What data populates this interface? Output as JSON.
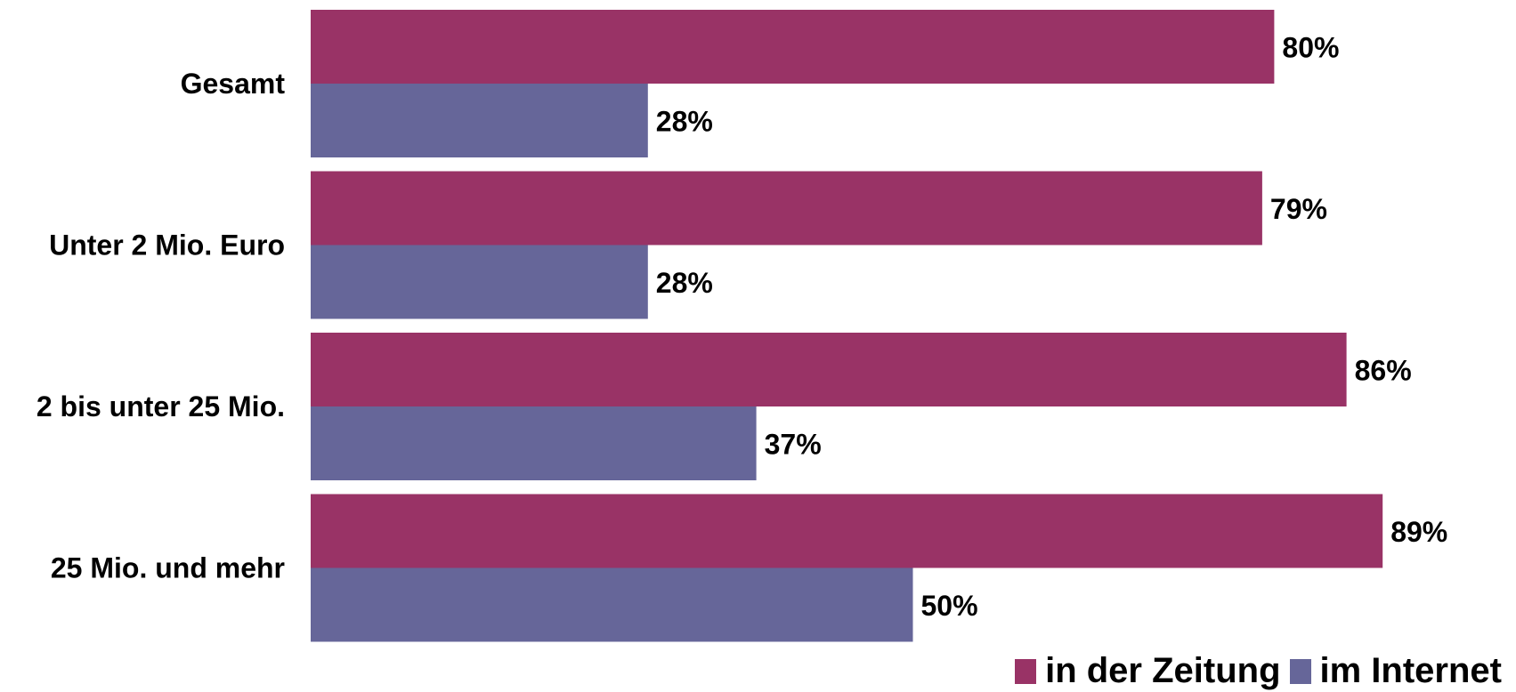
{
  "chart_data": {
    "type": "bar",
    "orientation": "horizontal",
    "categories": [
      "Gesamt",
      "Unter 2 Mio. Euro",
      "2 bis unter 25 Mio.",
      "25 Mio. und mehr"
    ],
    "series": [
      {
        "name": "in der Zeitung",
        "values": [
          80,
          79,
          86,
          89
        ],
        "labels": [
          "80%",
          "79%",
          "86%",
          "89%"
        ],
        "color": "#993366"
      },
      {
        "name": "im Internet",
        "values": [
          28,
          28,
          37,
          50
        ],
        "labels": [
          "28%",
          "28%",
          "37%",
          "50%"
        ],
        "color": "#666699"
      }
    ],
    "xlim": [
      0,
      100
    ],
    "unit": "%",
    "grid": false,
    "legend": "bottom-right"
  }
}
